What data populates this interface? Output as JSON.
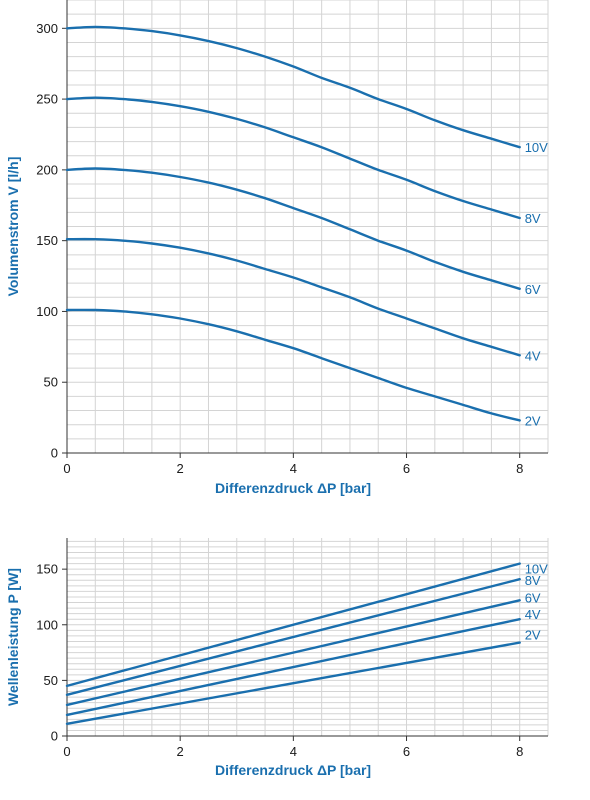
{
  "chart_data": [
    {
      "type": "line",
      "title": "",
      "xlabel": "Differenzdruck ΔP [bar]",
      "ylabel": "Volumenstrom V [l/h]",
      "xlim": [
        0,
        8.5
      ],
      "ylim": [
        0,
        320
      ],
      "xticks": [
        0,
        2,
        4,
        6,
        8
      ],
      "yticks": [
        0,
        50,
        100,
        150,
        200,
        250,
        300
      ],
      "grid": true,
      "legend": "inline-right",
      "line_color": "#1a6fae",
      "series": [
        {
          "name": "10V",
          "x": [
            0,
            0.5,
            1,
            1.5,
            2,
            2.5,
            3,
            3.5,
            4,
            4.5,
            5,
            5.5,
            6,
            6.5,
            7,
            7.5,
            8
          ],
          "y": [
            300,
            301,
            300,
            298,
            295,
            291,
            286,
            280,
            273,
            265,
            258,
            250,
            243,
            235,
            228,
            222,
            216
          ]
        },
        {
          "name": "8V",
          "x": [
            0,
            0.5,
            1,
            1.5,
            2,
            2.5,
            3,
            3.5,
            4,
            4.5,
            5,
            5.5,
            6,
            6.5,
            7,
            7.5,
            8
          ],
          "y": [
            250,
            251,
            250,
            248,
            245,
            241,
            236,
            230,
            223,
            216,
            208,
            200,
            193,
            185,
            178,
            172,
            166
          ]
        },
        {
          "name": "6V",
          "x": [
            0,
            0.5,
            1,
            1.5,
            2,
            2.5,
            3,
            3.5,
            4,
            4.5,
            5,
            5.5,
            6,
            6.5,
            7,
            7.5,
            8
          ],
          "y": [
            200,
            201,
            200,
            198,
            195,
            191,
            186,
            180,
            173,
            166,
            158,
            150,
            143,
            135,
            128,
            122,
            116
          ]
        },
        {
          "name": "4V",
          "x": [
            0,
            0.5,
            1,
            1.5,
            2,
            2.5,
            3,
            3.5,
            4,
            4.5,
            5,
            5.5,
            6,
            6.5,
            7,
            7.5,
            8
          ],
          "y": [
            151,
            151,
            150,
            148,
            145,
            141,
            136,
            130,
            124,
            117,
            110,
            102,
            95,
            88,
            81,
            75,
            69
          ]
        },
        {
          "name": "2V",
          "x": [
            0,
            0.5,
            1,
            1.5,
            2,
            2.5,
            3,
            3.5,
            4,
            4.5,
            5,
            5.5,
            6,
            6.5,
            7,
            7.5,
            8
          ],
          "y": [
            101,
            101,
            100,
            98,
            95,
            91,
            86,
            80,
            74,
            67,
            60,
            53,
            46,
            40,
            34,
            28,
            23
          ]
        }
      ]
    },
    {
      "type": "line",
      "title": "",
      "xlabel": "Differenzdruck ΔP [bar]",
      "ylabel": "Wellenleistung P [W]",
      "xlim": [
        0,
        8.5
      ],
      "ylim": [
        0,
        178
      ],
      "xticks": [
        0,
        2,
        4,
        6,
        8
      ],
      "yticks": [
        0,
        50,
        100,
        150
      ],
      "grid": true,
      "legend": "inline-right",
      "line_color": "#1a6fae",
      "series": [
        {
          "name": "10V",
          "x": [
            0,
            8
          ],
          "y": [
            45,
            155
          ]
        },
        {
          "name": "8V",
          "x": [
            0,
            8
          ],
          "y": [
            37,
            141
          ]
        },
        {
          "name": "6V",
          "x": [
            0,
            8
          ],
          "y": [
            28,
            122
          ]
        },
        {
          "name": "4V",
          "x": [
            0,
            8
          ],
          "y": [
            19,
            105
          ]
        },
        {
          "name": "2V",
          "x": [
            0,
            8
          ],
          "y": [
            11,
            84
          ]
        }
      ]
    }
  ]
}
